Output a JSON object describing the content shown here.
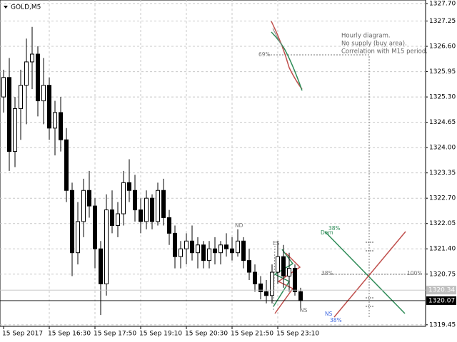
{
  "chart_data": {
    "type": "candlestick",
    "symbol_label": "GOLD,M5",
    "open": [
      1325.3,
      1325.8,
      1323.9,
      1325.0,
      1325.6,
      1326.2,
      1326.4,
      1325.2,
      1325.6,
      1324.5,
      1324.9,
      1324.2,
      1322.9,
      1321.3,
      1322.1,
      1322.9,
      1322.5,
      1321.4,
      1320.5,
      1322.4,
      1322.0,
      1322.3,
      1323.1,
      1322.9,
      1322.4,
      1322.1,
      1322.7,
      1322.1,
      1322.9,
      1322.2,
      1321.8,
      1321.2,
      1321.4,
      1321.6,
      1321.3,
      1321.5,
      1321.1,
      1321.4,
      1321.3,
      1321.5,
      1321.4,
      1321.3,
      1321.6,
      1321.1,
      1320.8,
      1320.5,
      1320.3,
      1320.2,
      1320.8,
      1321.2,
      1320.7,
      1320.9,
      1320.3
    ],
    "high": [
      1326.0,
      1326.3,
      1325.3,
      1326.0,
      1326.8,
      1327.1,
      1326.6,
      1326.3,
      1325.8,
      1325.2,
      1325.3,
      1324.5,
      1323.1,
      1322.6,
      1323.2,
      1323.4,
      1322.7,
      1321.6,
      1322.8,
      1322.9,
      1322.6,
      1323.4,
      1323.7,
      1323.3,
      1322.7,
      1322.9,
      1322.8,
      1323.1,
      1323.2,
      1322.4,
      1322.0,
      1321.6,
      1321.8,
      1322.0,
      1321.7,
      1321.6,
      1321.6,
      1321.7,
      1321.6,
      1321.8,
      1321.7,
      1321.9,
      1321.7,
      1321.4,
      1321.0,
      1320.7,
      1320.6,
      1321.0,
      1321.6,
      1321.5,
      1321.3,
      1321.0,
      1320.4
    ],
    "low": [
      1324.9,
      1323.4,
      1323.5,
      1324.2,
      1324.6,
      1325.5,
      1324.8,
      1324.6,
      1324.2,
      1323.8,
      1323.9,
      1322.6,
      1320.7,
      1321.0,
      1321.7,
      1322.2,
      1320.9,
      1319.7,
      1320.2,
      1321.8,
      1321.7,
      1322.0,
      1322.6,
      1322.1,
      1321.8,
      1321.9,
      1321.9,
      1322.0,
      1322.0,
      1321.5,
      1320.9,
      1320.9,
      1321.0,
      1321.1,
      1320.9,
      1320.9,
      1320.9,
      1321.0,
      1321.0,
      1321.2,
      1321.1,
      1321.2,
      1320.9,
      1320.6,
      1320.3,
      1320.1,
      1320.0,
      1320.0,
      1320.5,
      1320.4,
      1320.3,
      1320.2,
      1319.8
    ],
    "close": [
      1325.8,
      1323.9,
      1325.0,
      1325.6,
      1326.2,
      1326.4,
      1325.2,
      1325.6,
      1324.5,
      1324.9,
      1324.2,
      1322.9,
      1321.3,
      1322.1,
      1322.9,
      1322.5,
      1321.4,
      1320.5,
      1322.4,
      1322.0,
      1322.3,
      1323.1,
      1322.9,
      1322.4,
      1322.1,
      1322.7,
      1322.1,
      1322.9,
      1322.2,
      1321.8,
      1321.2,
      1321.4,
      1321.6,
      1321.3,
      1321.5,
      1321.1,
      1321.4,
      1321.3,
      1321.5,
      1321.4,
      1321.3,
      1321.6,
      1321.1,
      1320.8,
      1320.5,
      1320.3,
      1320.2,
      1320.8,
      1321.2,
      1320.7,
      1320.9,
      1320.3,
      1320.07
    ],
    "ylim": [
      1319.41,
      1327.79
    ],
    "yticks": [
      {
        "value": 1327.7,
        "label": "1327.70"
      },
      1327.25,
      {
        "value": 1326.6,
        "label": "1326.60"
      },
      1325.95,
      {
        "value": 1325.3,
        "label": "1325.30"
      },
      1324.65,
      {
        "value": 1324,
        "label": "1324.00"
      },
      1323.35,
      {
        "value": 1322.7,
        "label": "1322.70"
      },
      1322.05,
      {
        "value": 1321.4,
        "label": "1321.40"
      },
      1320.75,
      1319.45
    ],
    "xticks": [
      {
        "value": 0,
        "label": "15 Sep 2017"
      },
      {
        "value": 8,
        "label": "15 Sep 16:30"
      },
      {
        "value": 16,
        "label": "15 Sep 17:50"
      },
      {
        "value": 24,
        "label": "15 Sep 19:10"
      },
      {
        "value": 32,
        "label": "15 Sep 20:30"
      },
      {
        "value": 40,
        "label": "15 Sep 21:50"
      },
      {
        "value": 48,
        "label": "15 Sep 23:10"
      }
    ],
    "grid": true,
    "price_lines": [
      {
        "value": 1320.34,
        "label": "1320.34",
        "color": "#c0c0c0"
      },
      {
        "value": 1320.07,
        "label": "1320.07",
        "color": "#000000"
      }
    ],
    "note": [
      "Hourly diagram.",
      "No supply (buy area).",
      "Correlation with M15 period."
    ],
    "labels": {
      "p69": "69%",
      "nd": "ND",
      "es": "ES",
      "ns1": "NS",
      "dem": "Dem",
      "p38a": "38%",
      "p38b": "38%",
      "p100": "100%",
      "ns2": "NS",
      "p38c": "38%"
    }
  }
}
